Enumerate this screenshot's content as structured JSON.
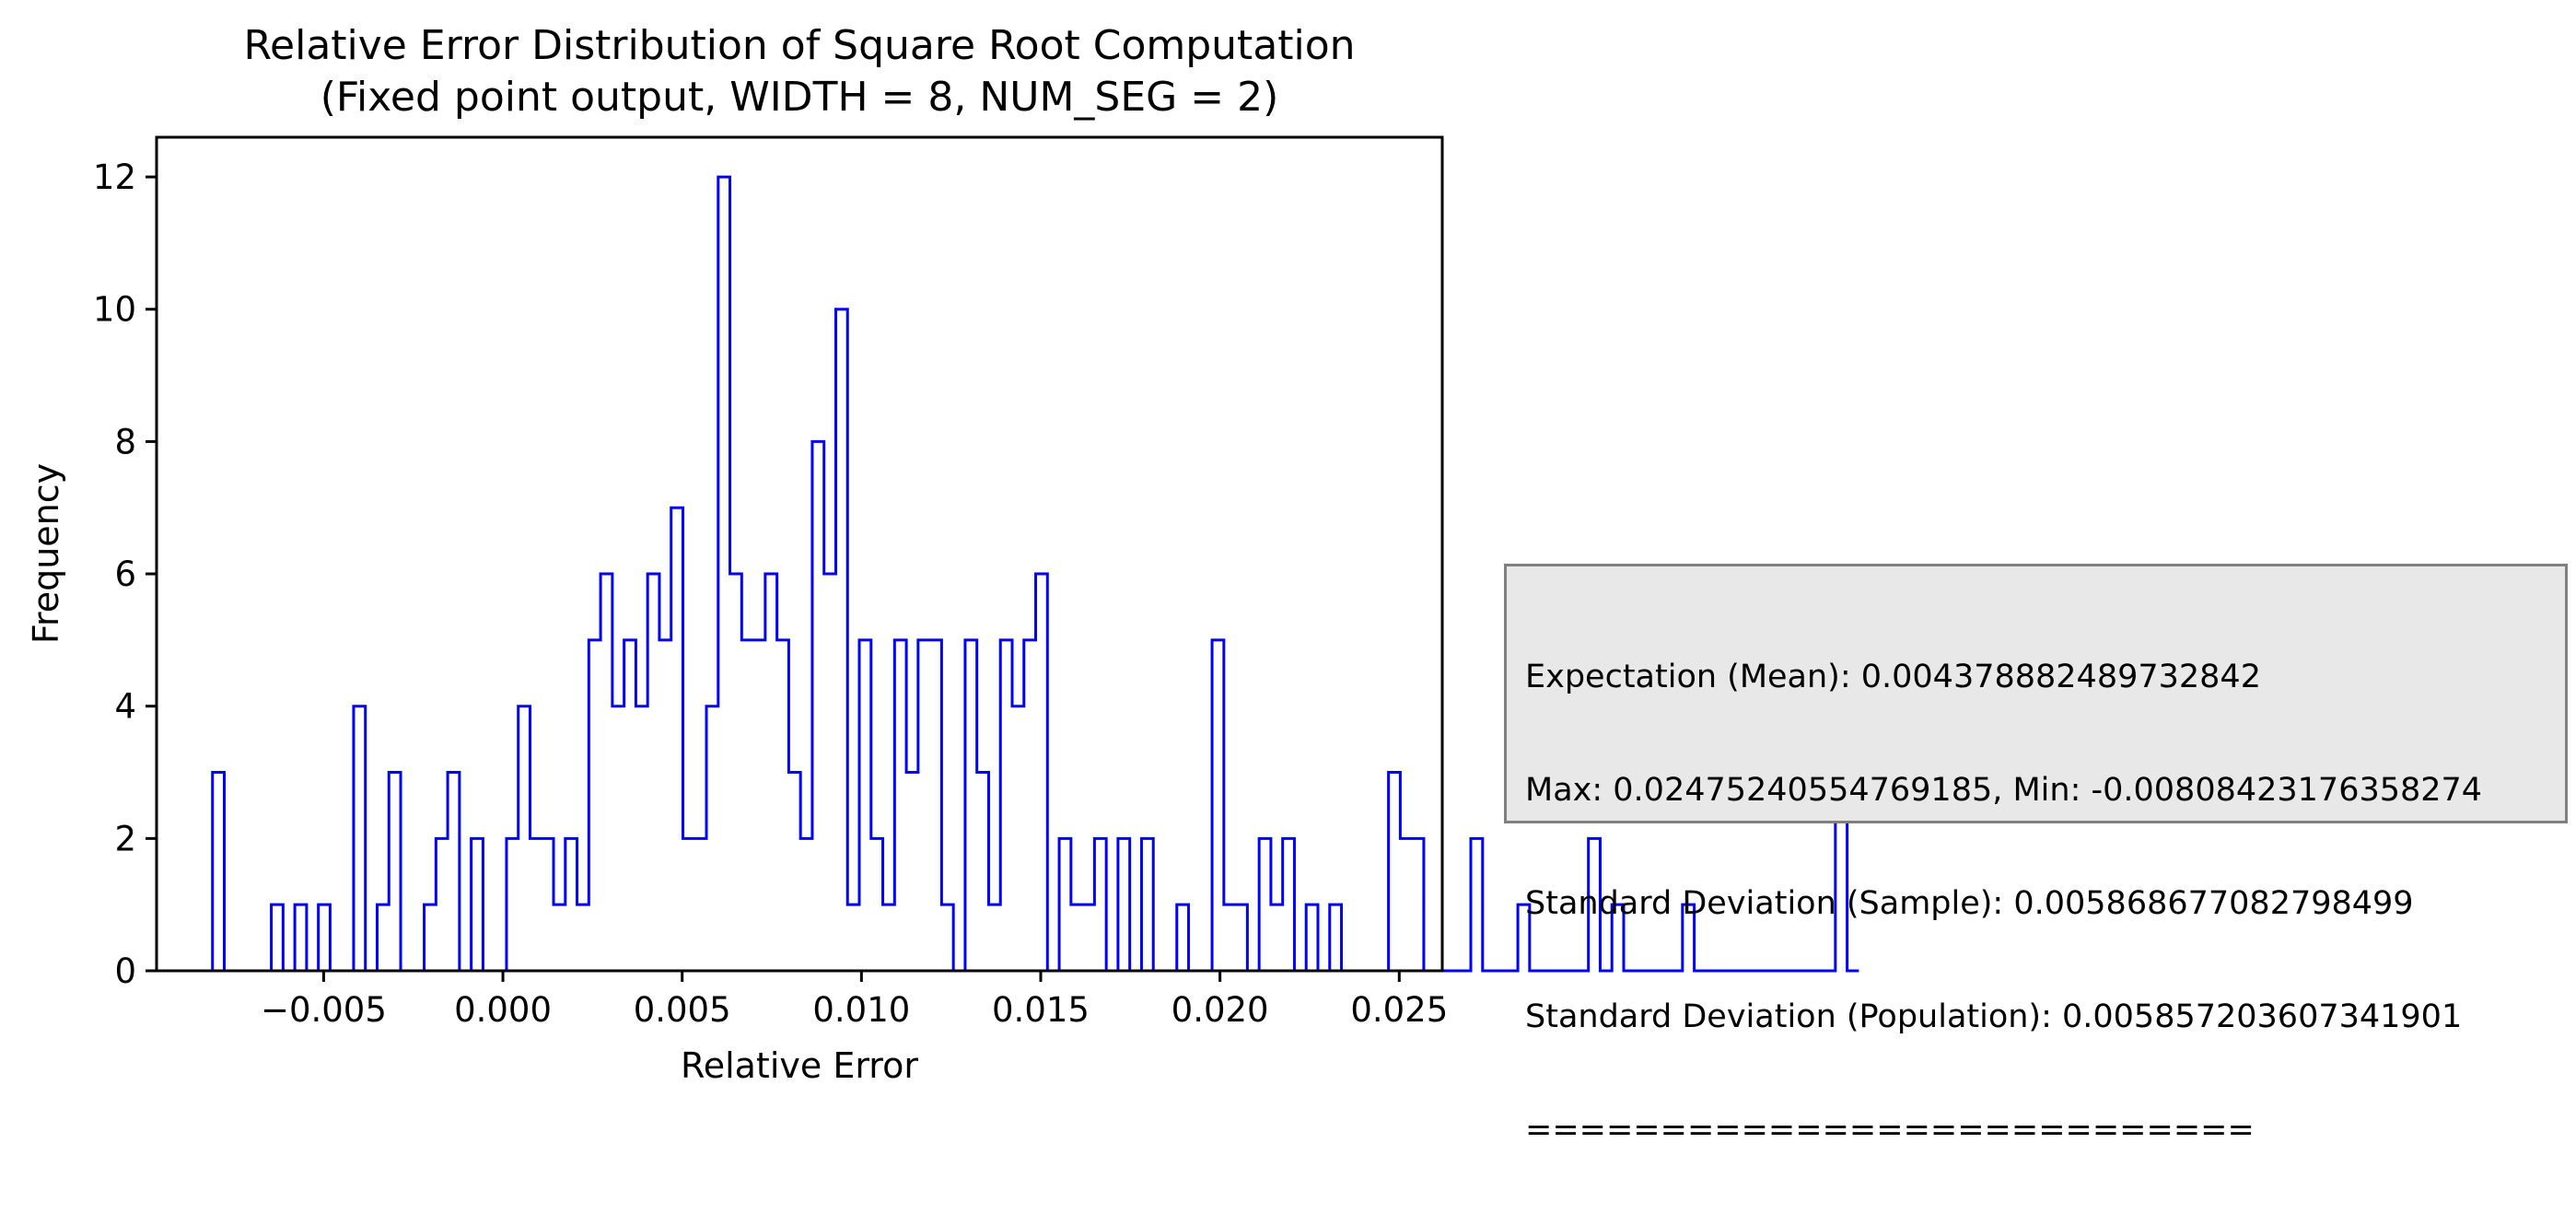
{
  "title": {
    "line1": "Relative Error Distribution of Square Root Computation",
    "line2": "(Fixed point output, WIDTH = 8, NUM_SEG = 2)"
  },
  "stats": {
    "line1": "Expectation (Mean): 0.004378882489732842",
    "line2": "Max: 0.0247524055476918​5, Min: -0.00808423176358274",
    "line3": "Standard Deviation (Sample): 0.005868677082798499",
    "line4": "Standard Deviation (Population): 0.005857203607341901",
    "line5": "==========================="
  },
  "colors": {
    "line": "#0000ff",
    "box_bg": "#e8e8e8",
    "box_border": "#808080"
  },
  "chart_data": {
    "type": "step",
    "xlabel": "Relative Error",
    "ylabel": "Frequency",
    "xlim": [
      -0.00966,
      0.0262
    ],
    "ylim": [
      0,
      12.6
    ],
    "x_ticks": [
      -0.005,
      0.0,
      0.005,
      0.01,
      0.015,
      0.02,
      0.025
    ],
    "x_tick_labels": [
      "−0.005",
      "0.000",
      "0.005",
      "0.010",
      "0.015",
      "0.020",
      "0.025"
    ],
    "y_ticks": [
      0,
      2,
      4,
      6,
      8,
      10,
      12
    ],
    "y_tick_labels": [
      "0",
      "2",
      "4",
      "6",
      "8",
      "10",
      "12"
    ],
    "grid": false,
    "bins": {
      "start": -0.0081,
      "width": 0.000328
    },
    "counts": [
      3,
      0,
      0,
      0,
      0,
      1,
      0,
      1,
      0,
      1,
      0,
      0,
      4,
      0,
      1,
      3,
      0,
      0,
      1,
      2,
      3,
      0,
      2,
      0,
      0,
      2,
      4,
      2,
      2,
      1,
      2,
      1,
      5,
      6,
      4,
      5,
      4,
      6,
      5,
      7,
      2,
      2,
      4,
      12,
      6,
      5,
      5,
      6,
      5,
      3,
      2,
      8,
      6,
      10,
      1,
      5,
      2,
      1,
      5,
      3,
      5,
      5,
      1,
      0,
      5,
      3,
      1,
      5,
      4,
      5,
      6,
      0,
      2,
      1,
      1,
      2,
      0,
      2,
      0,
      2,
      0,
      0,
      1,
      0,
      0,
      5,
      1,
      1,
      0,
      2,
      1,
      2,
      0,
      1,
      0,
      1,
      0,
      0,
      0,
      0,
      3,
      2,
      2,
      0,
      0,
      0,
      0,
      2,
      0,
      0,
      0,
      1,
      0,
      0,
      0,
      0,
      0,
      2,
      0,
      1,
      0,
      0,
      0,
      0,
      0,
      1,
      0,
      0,
      0,
      0,
      0,
      0,
      0,
      0,
      0,
      0,
      0,
      0,
      3,
      0
    ]
  }
}
